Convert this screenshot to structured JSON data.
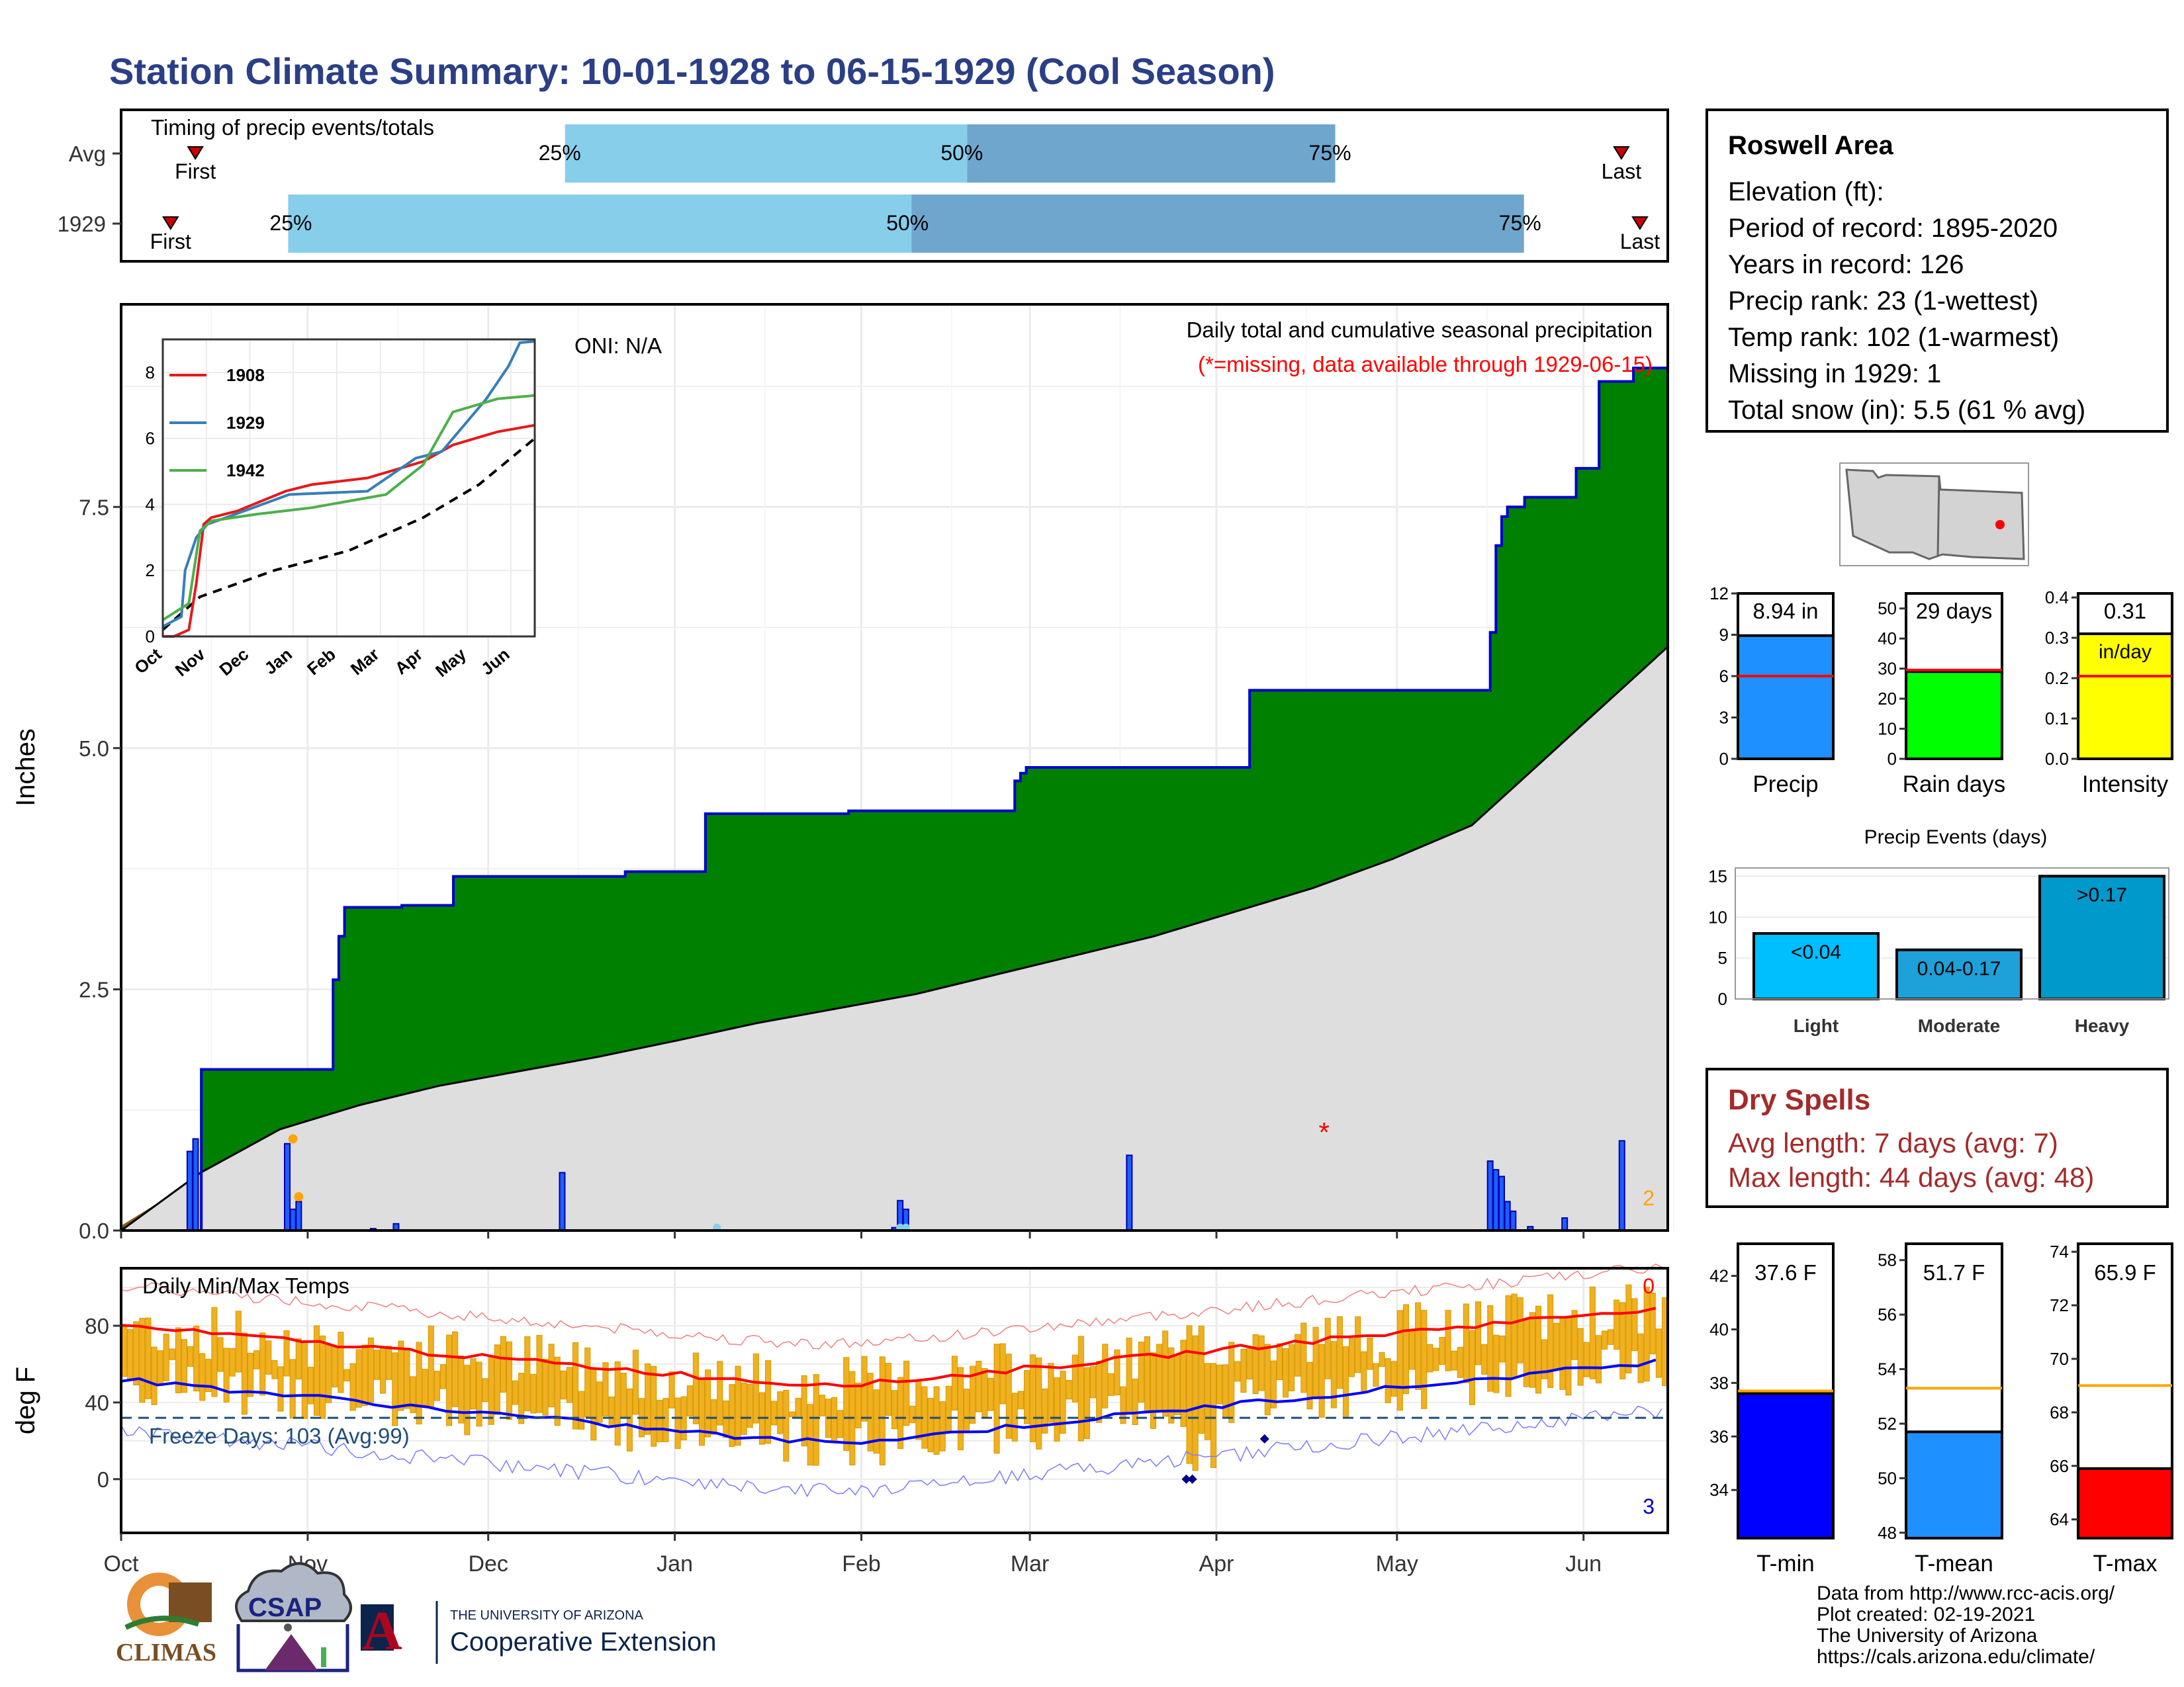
{
  "title": "Station Climate Summary: 10-01-1928 to 06-15-1929 (Cool Season)",
  "timing": {
    "label": "Timing of precip events/totals",
    "rows": [
      {
        "name": "Avg",
        "first_frac": 0.048,
        "last_frac": 0.97,
        "p25": 0.287,
        "p50": 0.547,
        "p75": 0.785,
        "end_frac": 0.785
      },
      {
        "name": "1929",
        "first_frac": 0.032,
        "last_frac": 0.982,
        "p25": 0.108,
        "p50": 0.511,
        "p75": 0.907,
        "end_frac": 0.907
      }
    ],
    "first_label": "First",
    "last_label": "Last",
    "p25_label": "25%",
    "p50_label": "50%",
    "p75_label": "75%"
  },
  "main_chart": {
    "ylabel": "Inches",
    "oni": "ONI: N/A",
    "subtitle": "Daily total and cumulative seasonal precipitation",
    "missing_note": "(*=missing, data available through 1929-06-15)",
    "yticks": [
      "0.0",
      "2.5",
      "5.0",
      "7.5"
    ],
    "count_label": "2",
    "missing_marker": "*"
  },
  "chart_data": {
    "type": "area",
    "title": "Daily total and cumulative seasonal precipitation",
    "ylabel": "Inches",
    "ylim": [
      0,
      9.6
    ],
    "x_range_days": [
      0,
      257
    ],
    "cumulative_1929": [
      [
        0,
        0
      ],
      [
        13,
        0
      ],
      [
        14,
        1.67
      ],
      [
        30,
        1.67
      ],
      [
        36,
        1.67
      ],
      [
        37,
        2.6
      ],
      [
        38,
        3.05
      ],
      [
        39,
        3.35
      ],
      [
        48,
        3.35
      ],
      [
        49,
        3.37
      ],
      [
        57,
        3.37
      ],
      [
        58,
        3.67
      ],
      [
        87,
        3.67
      ],
      [
        88,
        3.72
      ],
      [
        101,
        3.72
      ],
      [
        102,
        4.32
      ],
      [
        126,
        4.32
      ],
      [
        127,
        4.35
      ],
      [
        128,
        4.35
      ],
      [
        155,
        4.35
      ],
      [
        156,
        4.66
      ],
      [
        157,
        4.74
      ],
      [
        158,
        4.8
      ],
      [
        176,
        4.8
      ],
      [
        177,
        4.8
      ],
      [
        196,
        4.8
      ],
      [
        197,
        5.6
      ],
      [
        222,
        5.6
      ],
      [
        223,
        5.6
      ],
      [
        238,
        5.6
      ],
      [
        239,
        6.2
      ],
      [
        240,
        7.1
      ],
      [
        241,
        7.4
      ],
      [
        242,
        7.5
      ],
      [
        245,
        7.6
      ],
      [
        253,
        7.6
      ],
      [
        254,
        7.9
      ],
      [
        257,
        7.9
      ],
      [
        258,
        8.8
      ],
      [
        263,
        8.8
      ],
      [
        264,
        8.94
      ],
      [
        270,
        8.94
      ]
    ],
    "cumulative_avg": [
      [
        0,
        0
      ],
      [
        15,
        0.6
      ],
      [
        30,
        1.05
      ],
      [
        45,
        1.3
      ],
      [
        60,
        1.5
      ],
      [
        75,
        1.65
      ],
      [
        90,
        1.8
      ],
      [
        105,
        1.97
      ],
      [
        120,
        2.15
      ],
      [
        135,
        2.3
      ],
      [
        150,
        2.45
      ],
      [
        165,
        2.65
      ],
      [
        180,
        2.85
      ],
      [
        195,
        3.05
      ],
      [
        210,
        3.3
      ],
      [
        225,
        3.55
      ],
      [
        240,
        3.85
      ],
      [
        255,
        4.2
      ],
      [
        265,
        4.7
      ],
      [
        275,
        5.2
      ],
      [
        285,
        5.7
      ],
      [
        292,
        6.05
      ]
    ],
    "daily_precip": [
      [
        12,
        0.82
      ],
      [
        13,
        0.95
      ],
      [
        29,
        0.9
      ],
      [
        30,
        0.22
      ],
      [
        31,
        0.3
      ],
      [
        44,
        0.02
      ],
      [
        48,
        0.07
      ],
      [
        77,
        0.6
      ],
      [
        135,
        0.03
      ],
      [
        136,
        0.31
      ],
      [
        137,
        0.22
      ],
      [
        176,
        0.78
      ],
      [
        239,
        0.72
      ],
      [
        240,
        0.63
      ],
      [
        241,
        0.56
      ],
      [
        242,
        0.3
      ],
      [
        243,
        0.2
      ],
      [
        246,
        0.04
      ],
      [
        252,
        0.13
      ],
      [
        262,
        0.93
      ]
    ],
    "months": [
      "Oct",
      "Nov",
      "Dec",
      "Jan",
      "Feb",
      "Mar",
      "Apr",
      "May",
      "Jun"
    ]
  },
  "inset": {
    "series": [
      {
        "name": "1908",
        "color": "#e41a1c"
      },
      {
        "name": "1929",
        "color": "#377eb8"
      },
      {
        "name": "1942",
        "color": "#4daf4a"
      }
    ],
    "yticks": [
      "0",
      "2",
      "4",
      "6",
      "8"
    ],
    "months": [
      "Oct",
      "Nov",
      "Dec",
      "Jan",
      "Feb",
      "Mar",
      "Apr",
      "May",
      "Jun"
    ]
  },
  "temps": {
    "label": "Daily Min/Max Temps",
    "ylabel": "deg F",
    "freeze_label": "Freeze Days: 103 (Avg:99)",
    "yticks": [
      "0",
      "40",
      "80"
    ],
    "count_max": "0",
    "count_min": "3",
    "ylim": [
      -28,
      110
    ],
    "freeze_line": 32
  },
  "info": {
    "title": "Roswell Area",
    "lines": [
      "Elevation (ft):",
      "Period of record: 1895-2020",
      "Years in record: 126",
      "Precip rank: 23 (1-wettest)",
      "Temp rank: 102 (1-warmest)",
      "Missing in 1929: 1",
      "Total snow (in): 5.5 (61 % avg)"
    ]
  },
  "mini_bars": [
    {
      "label": "Precip",
      "value_text": "8.94 in",
      "value": 8.94,
      "avg": 6.0,
      "max": 12,
      "ticks": [
        "0",
        "3",
        "6",
        "9",
        "12"
      ],
      "color": "#1e90ff"
    },
    {
      "label": "Rain days",
      "value_text": "29 days",
      "value": 29,
      "avg": 29.5,
      "max": 55,
      "ticks": [
        "0",
        "10",
        "20",
        "30",
        "40",
        "50"
      ],
      "color": "#00ff00"
    },
    {
      "label": "Intensity",
      "value_text": "0.31",
      "value_text2": "in/day",
      "value": 0.31,
      "avg": 0.205,
      "max": 0.41,
      "ticks": [
        "0.0",
        "0.1",
        "0.2",
        "0.3",
        "0.4"
      ],
      "color": "#ffff00"
    }
  ],
  "events": {
    "title": "Precip Events (days)",
    "categories": [
      "Light",
      "Moderate",
      "Heavy"
    ],
    "values": [
      8,
      6,
      15
    ],
    "labels": [
      "<0.04",
      "0.04-0.17",
      ">0.17"
    ],
    "colors": [
      "#00bfff",
      "#1ea0d8",
      "#0099cc"
    ],
    "ticks": [
      "0",
      "5",
      "10",
      "15"
    ],
    "max": 16
  },
  "temp_bars": [
    {
      "label": "T-min",
      "value_text": "37.6 F",
      "value": 37.6,
      "avg": 37.7,
      "min": 32.2,
      "max": 43.2,
      "ticks": [
        "34",
        "36",
        "38",
        "40",
        "42"
      ],
      "color": "#0000ff"
    },
    {
      "label": "T-mean",
      "value_text": "51.7 F",
      "value": 51.7,
      "avg": 53.3,
      "min": 47.8,
      "max": 58.6,
      "ticks": [
        "48",
        "50",
        "52",
        "54",
        "56",
        "58"
      ],
      "color": "#1e90ff"
    },
    {
      "label": "T-max",
      "value_text": "65.9 F",
      "value": 65.9,
      "avg": 69.0,
      "min": 63.3,
      "max": 74.3,
      "ticks": [
        "64",
        "66",
        "68",
        "70",
        "72",
        "74"
      ],
      "color": "#ff0000"
    }
  ],
  "dry": {
    "title": "Dry Spells",
    "avg": "Avg length: 7 days (avg: 7)",
    "max": "Max length: 44 days (avg: 48)"
  },
  "footer": [
    "Data from http://www.rcc-acis.org/",
    "Plot created: 02-19-2021",
    "The University of Arizona",
    "https://cals.arizona.edu/climate/"
  ],
  "logos": {
    "climas": "CLIMAS",
    "csap": "CSAP",
    "ua_top": "THE UNIVERSITY OF ARIZONA",
    "ua_bottom": "Cooperative Extension",
    "ua_letter": "A"
  }
}
